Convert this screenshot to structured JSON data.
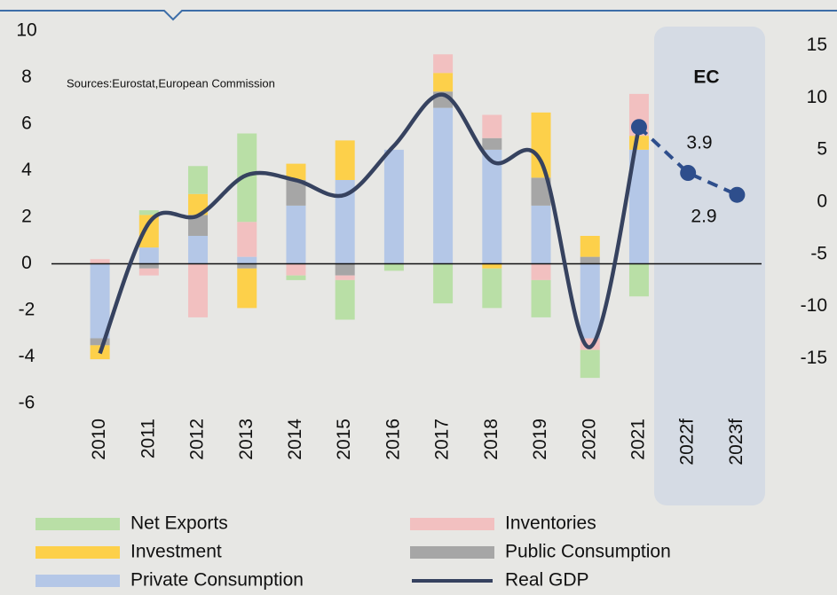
{
  "chart_data": {
    "type": "bar",
    "source": "Sources:Eurostat,European Commission",
    "annotations": [
      "EC",
      "3.9",
      "2.9"
    ],
    "forecast_start": "2022f",
    "categories": [
      "2010",
      "2011",
      "2012",
      "2013",
      "2014",
      "2015",
      "2016",
      "2017",
      "2018",
      "2019",
      "2020",
      "2021",
      "2022f",
      "2023f"
    ],
    "series": [
      {
        "name": "Private Consumption",
        "color": "#b4c7e7",
        "values": [
          -3.2,
          0.7,
          1.2,
          0.3,
          2.5,
          3.6,
          4.9,
          6.7,
          4.9,
          2.5,
          -3.2,
          4.9,
          null,
          null
        ]
      },
      {
        "name": "Public Consumption",
        "color": "#a6a6a6",
        "values": [
          -0.3,
          -0.2,
          0.9,
          -0.2,
          1.1,
          -0.5,
          0,
          0.7,
          0.5,
          1.2,
          0.3,
          0,
          null,
          null
        ]
      },
      {
        "name": "Investment",
        "color": "#fdd04a",
        "values": [
          -0.6,
          1.4,
          0.9,
          -1.7,
          0.7,
          1.7,
          0,
          0.8,
          -0.2,
          2.8,
          0.9,
          0.6,
          null,
          null
        ]
      },
      {
        "name": "Inventories",
        "color": "#f2c0c0",
        "values": [
          0.2,
          -0.3,
          -2.3,
          1.5,
          -0.5,
          -0.2,
          0,
          0.8,
          1.0,
          -0.7,
          -0.5,
          1.8,
          null,
          null
        ]
      },
      {
        "name": "Net Exports",
        "color": "#b9dfa6",
        "values": [
          0,
          0.2,
          1.2,
          3.8,
          -0.2,
          -1.7,
          -0.3,
          -1.7,
          -1.7,
          -1.6,
          -1.2,
          -1.4,
          null,
          null
        ]
      },
      {
        "name": "Real GDP",
        "color": "#36425f",
        "axis": "y2",
        "values": [
          -14.5,
          -2.0,
          -1.3,
          2.6,
          2.1,
          0.7,
          5.4,
          10.3,
          3.9,
          3.9,
          -13.9,
          7.2,
          2.8,
          0.7
        ]
      }
    ],
    "ylim": [
      -6,
      10
    ],
    "yticks": [
      -6,
      -4,
      -2,
      0,
      2,
      4,
      6,
      8,
      10
    ],
    "y2lim": [
      -19.3,
      16.4
    ],
    "y2ticks": [
      -15,
      -10,
      -5,
      0,
      5,
      10,
      15
    ]
  }
}
